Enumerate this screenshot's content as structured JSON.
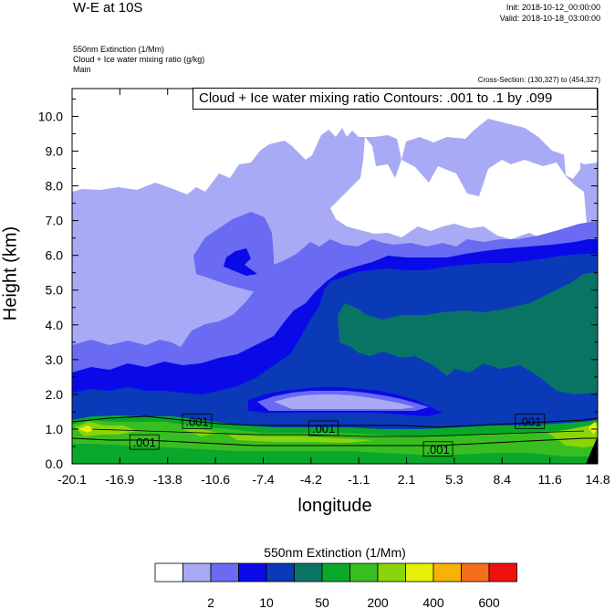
{
  "header": {
    "title": "W-E at 10S",
    "init": "Init: 2018-10-12_00:00:00",
    "valid": "Valid: 2018-10-18_03:00:00",
    "field1": "550nm Extinction   (1/Mm)",
    "field2": "Cloud + Ice water mixing ratio   (g/kg)",
    "field3": "Main",
    "cross_section": "Cross-Section: (130,327) to (454,327)",
    "contour_info": "Cloud + Ice water mixing ratio Contours: .001 to .1 by .099"
  },
  "colorbar": {
    "title": "550nm Extinction  (1/Mm)",
    "colors": [
      "#ffffff",
      "#a8aaf5",
      "#6a6af2",
      "#0a0ae8",
      "#0a3ab8",
      "#0a7464",
      "#0aa82a",
      "#38be20",
      "#8cd40a",
      "#e6f008",
      "#f7b208",
      "#f56e1a",
      "#f01010"
    ],
    "labels": [
      {
        "text": "2",
        "index": 1
      },
      {
        "text": "10",
        "index": 3
      },
      {
        "text": "50",
        "index": 5
      },
      {
        "text": "200",
        "index": 7
      },
      {
        "text": "400",
        "index": 9
      },
      {
        "text": "600",
        "index": 11
      }
    ]
  },
  "chart_data": {
    "type": "heatmap",
    "title": "W-E at 10S",
    "xlabel": "longitude",
    "ylabel": "Height (km)",
    "xlim": [
      -20.1,
      14.8
    ],
    "ylim": [
      0.0,
      10.8
    ],
    "x_ticks": [
      "-20.1",
      "-16.9",
      "-13.8",
      "-10.6",
      "-7.4",
      "-4.2",
      "-1.1",
      "2.1",
      "5.3",
      "8.4",
      "11.6",
      "14.8"
    ],
    "y_ticks": [
      "0.0",
      "1.0",
      "2.0",
      "3.0",
      "4.0",
      "5.0",
      "6.0",
      "7.0",
      "8.0",
      "9.0",
      "10.0"
    ],
    "contour_labels": [
      {
        "text": ".001",
        "lon": -11.8,
        "height": 1.2
      },
      {
        "text": ".001",
        "lon": -15.3,
        "height": 0.6
      },
      {
        "text": ".001",
        "lon": -3.4,
        "height": 1.0
      },
      {
        "text": ".001",
        "lon": 4.2,
        "height": 0.4
      },
      {
        "text": ".001",
        "lon": 10.3,
        "height": 1.2
      }
    ]
  }
}
